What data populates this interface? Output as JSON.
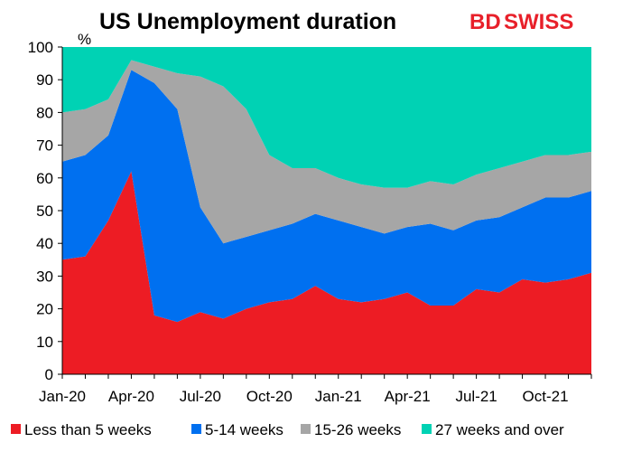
{
  "brand": {
    "logo_text_primary": "BD",
    "logo_text_secondary": "SWISS",
    "logo_color": "#e8202a"
  },
  "chart_data": {
    "type": "area",
    "stacked": true,
    "title": "US Unemployment duration",
    "ylabel": "%",
    "xlabel": "",
    "ylim": [
      0,
      100
    ],
    "y_ticks": [
      0,
      10,
      20,
      30,
      40,
      50,
      60,
      70,
      80,
      90,
      100
    ],
    "x_tick_labels": [
      "Jan-20",
      "Apr-20",
      "Jul-20",
      "Oct-20",
      "Jan-21",
      "Apr-21",
      "Jul-21",
      "Oct-21"
    ],
    "x_tick_indices": [
      0,
      3,
      6,
      9,
      12,
      15,
      18,
      21
    ],
    "categories": [
      "Jan-20",
      "Feb-20",
      "Mar-20",
      "Apr-20",
      "May-20",
      "Jun-20",
      "Jul-20",
      "Aug-20",
      "Sep-20",
      "Oct-20",
      "Nov-20",
      "Dec-20",
      "Jan-21",
      "Feb-21",
      "Mar-21",
      "Apr-21",
      "May-21",
      "Jun-21",
      "Jul-21",
      "Aug-21",
      "Sep-21",
      "Oct-21",
      "Nov-21",
      "Dec-21"
    ],
    "grid": false,
    "legend_position": "bottom",
    "series": [
      {
        "name": "Less than 5 weeks",
        "color": "#ed1c24",
        "values": [
          35,
          36,
          47,
          62,
          18,
          16,
          19,
          17,
          20,
          22,
          23,
          27,
          23,
          22,
          23,
          25,
          21,
          21,
          26,
          25,
          29,
          28,
          29,
          31
        ]
      },
      {
        "name": "5-14 weeks",
        "color": "#0070f0",
        "values": [
          30,
          31,
          26,
          31,
          71,
          65,
          32,
          23,
          22,
          22,
          23,
          22,
          24,
          23,
          20,
          20,
          25,
          23,
          21,
          23,
          22,
          26,
          25,
          25
        ]
      },
      {
        "name": "15-26 weeks",
        "color": "#a6a6a6",
        "values": [
          15,
          14,
          11,
          3,
          5,
          11,
          40,
          48,
          39,
          23,
          17,
          14,
          13,
          13,
          14,
          12,
          13,
          14,
          14,
          15,
          14,
          13,
          13,
          12
        ]
      },
      {
        "name": "27 weeks and over",
        "color": "#00d2b4",
        "values": [
          20,
          19,
          16,
          4,
          6,
          8,
          9,
          12,
          19,
          33,
          37,
          37,
          40,
          42,
          43,
          43,
          41,
          42,
          39,
          37,
          35,
          33,
          33,
          32
        ]
      }
    ]
  }
}
